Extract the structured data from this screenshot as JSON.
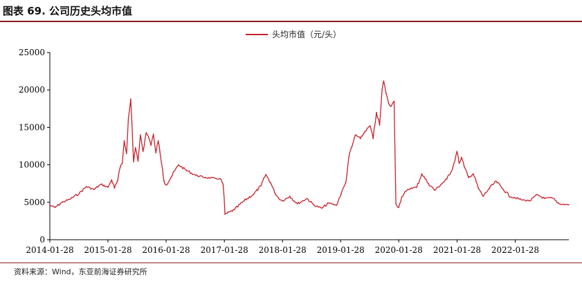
{
  "figure": {
    "title": "图表 69. 公司历史头均市值",
    "source": "资料来源：Wind，东亚前海证券研究所"
  },
  "colors": {
    "series": "#c8202a",
    "axis": "#000000",
    "accent": "#8b1a1a"
  },
  "chart_data": {
    "type": "line",
    "title": "",
    "xlabel": "",
    "ylabel": "",
    "ylim": [
      0,
      25000
    ],
    "yticks": [
      "0",
      "5000",
      "10000",
      "15000",
      "20000",
      "25000"
    ],
    "xticks": [
      "2014-01-28",
      "2015-01-28",
      "2016-01-28",
      "2017-01-28",
      "2018-01-28",
      "2019-01-28",
      "2020-01-28",
      "2021-01-28",
      "2022-01-28"
    ],
    "xlim": [
      "2014-01-28",
      "2022-12-31"
    ],
    "grid": false,
    "legend": "top-center",
    "series": [
      {
        "name": "头均市值（元/头）",
        "x": [
          "2014-01-28",
          "2014-03-01",
          "2014-04-15",
          "2014-06-01",
          "2014-08-01",
          "2014-09-15",
          "2014-11-01",
          "2014-12-15",
          "2015-01-28",
          "2015-02-20",
          "2015-03-10",
          "2015-03-30",
          "2015-04-15",
          "2015-04-28",
          "2015-05-10",
          "2015-05-25",
          "2015-06-05",
          "2015-06-12",
          "2015-06-20",
          "2015-06-28",
          "2015-07-08",
          "2015-07-20",
          "2015-08-05",
          "2015-08-20",
          "2015-09-05",
          "2015-09-25",
          "2015-10-10",
          "2015-10-25",
          "2015-11-10",
          "2015-11-25",
          "2015-12-10",
          "2015-12-20",
          "2016-01-05",
          "2016-01-15",
          "2016-01-28",
          "2016-03-01",
          "2016-04-15",
          "2016-06-01",
          "2016-08-01",
          "2016-10-01",
          "2016-12-01",
          "2017-01-05",
          "2017-01-20",
          "2017-02-01",
          "2017-04-01",
          "2017-06-01",
          "2017-08-01",
          "2017-09-15",
          "2017-10-15",
          "2017-11-15",
          "2017-12-10",
          "2018-01-05",
          "2018-01-28",
          "2018-03-15",
          "2018-05-01",
          "2018-07-01",
          "2018-08-15",
          "2018-10-01",
          "2018-11-15",
          "2019-01-01",
          "2019-02-01",
          "2019-03-01",
          "2019-03-20",
          "2019-04-10",
          "2019-05-01",
          "2019-06-01",
          "2019-07-01",
          "2019-08-01",
          "2019-08-20",
          "2019-09-10",
          "2019-09-30",
          "2019-10-15",
          "2019-10-25",
          "2019-11-10",
          "2019-11-25",
          "2019-12-10",
          "2019-12-30",
          "2020-01-10",
          "2020-01-28",
          "2020-02-15",
          "2020-03-15",
          "2020-04-15",
          "2020-05-20",
          "2020-06-20",
          "2020-08-01",
          "2020-09-10",
          "2020-10-20",
          "2020-11-25",
          "2021-01-01",
          "2021-01-28",
          "2021-02-10",
          "2021-02-25",
          "2021-03-15",
          "2021-04-10",
          "2021-05-10",
          "2021-06-10",
          "2021-07-10",
          "2021-08-20",
          "2021-10-01",
          "2021-11-15",
          "2022-01-01",
          "2022-01-28",
          "2022-03-15",
          "2022-05-01",
          "2022-06-15",
          "2022-08-01",
          "2022-09-15",
          "2022-11-01",
          "2022-12-01",
          "2022-12-31"
        ],
        "values": [
          4600,
          4300,
          5000,
          5400,
          6200,
          7100,
          6700,
          7400,
          7000,
          8000,
          6900,
          7900,
          9700,
          10200,
          13200,
          11500,
          16200,
          17300,
          18800,
          15500,
          10400,
          12300,
          10500,
          14000,
          11800,
          14300,
          13700,
          12600,
          14100,
          11600,
          13200,
          11800,
          9500,
          7800,
          7300,
          8400,
          10000,
          9300,
          8600,
          8300,
          8200,
          8100,
          7400,
          3400,
          4000,
          5200,
          6100,
          7200,
          8700,
          7600,
          6300,
          5500,
          5200,
          5800,
          4800,
          5500,
          4600,
          4200,
          4900,
          4600,
          6200,
          7600,
          11000,
          12500,
          14000,
          13500,
          14500,
          15200,
          13500,
          17000,
          15300,
          20000,
          21200,
          19500,
          18200,
          17800,
          18500,
          4800,
          4300,
          5700,
          6500,
          6900,
          7000,
          8800,
          7500,
          6600,
          7400,
          8100,
          9600,
          11800,
          10200,
          11000,
          9700,
          8300,
          8800,
          6900,
          5800,
          6900,
          7800,
          6700,
          5700,
          5600,
          5300,
          5200,
          6000,
          5500,
          5600,
          4800,
          4700,
          4700
        ]
      }
    ]
  }
}
